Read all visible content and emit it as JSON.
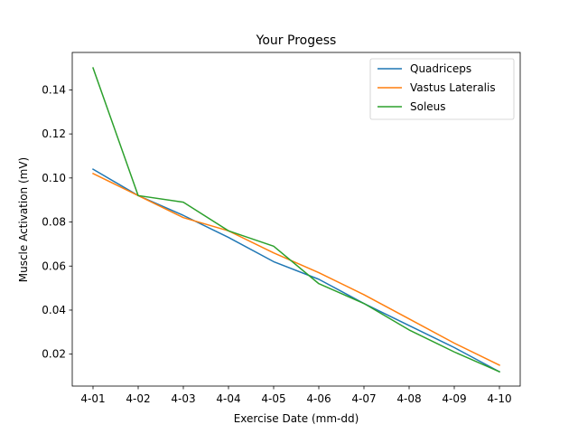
{
  "chart_data": {
    "type": "line",
    "title": "Your Progess",
    "xlabel": "Exercise Date (mm-dd)",
    "ylabel": "Muscle Activation (mV)",
    "categories": [
      "4-01",
      "4-02",
      "4-03",
      "4-04",
      "4-05",
      "4-06",
      "4-07",
      "4-08",
      "4-09",
      "4-10"
    ],
    "ylim": [
      0.0055,
      0.157
    ],
    "yticks": [
      0.02,
      0.04,
      0.06,
      0.08,
      0.1,
      0.12,
      0.14
    ],
    "ytick_labels": [
      "0.02",
      "0.04",
      "0.06",
      "0.08",
      "0.10",
      "0.12",
      "0.14"
    ],
    "grid": false,
    "legend_position": "top-right",
    "series": [
      {
        "name": "Quadriceps",
        "color": "#1f77b4",
        "values": [
          0.104,
          0.092,
          0.083,
          0.073,
          0.062,
          0.054,
          0.043,
          0.033,
          0.023,
          0.012
        ]
      },
      {
        "name": "Vastus Lateralis",
        "color": "#ff7f0e",
        "values": [
          0.102,
          0.092,
          0.082,
          0.076,
          0.066,
          0.057,
          0.047,
          0.036,
          0.025,
          0.015
        ]
      },
      {
        "name": "Soleus",
        "color": "#2ca02c",
        "values": [
          0.15,
          0.092,
          0.089,
          0.076,
          0.069,
          0.052,
          0.043,
          0.031,
          0.021,
          0.012
        ]
      }
    ]
  }
}
